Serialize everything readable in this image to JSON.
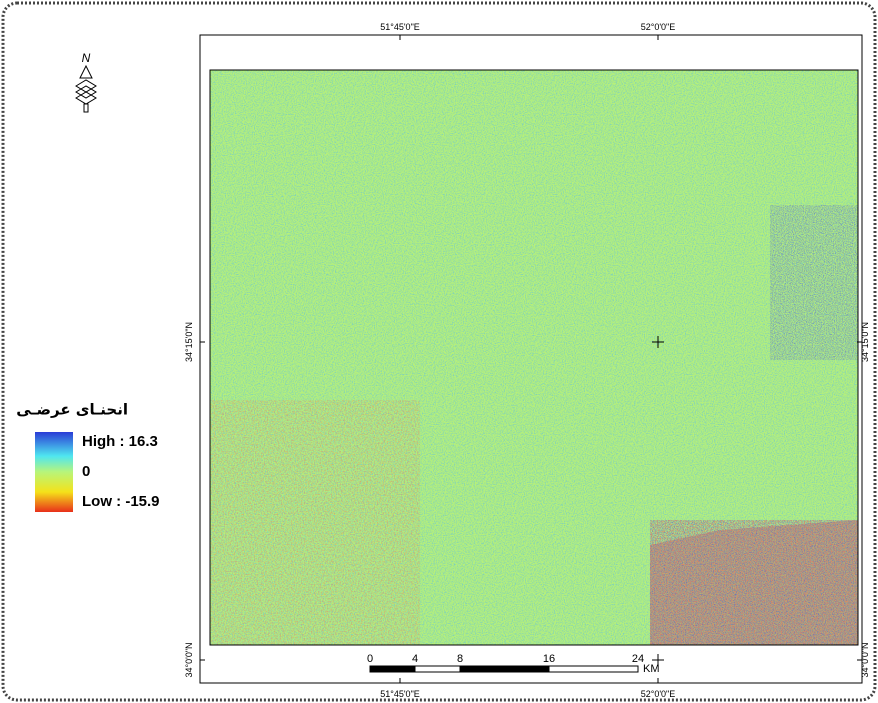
{
  "north_arrow": "N",
  "legend": {
    "title": "انحنـای عرضـی",
    "high": "High : 16.3",
    "zero": "0",
    "low": "Low : -15.9"
  },
  "graticule": {
    "top": [
      "51°45'0\"E",
      "52°0'0\"E"
    ],
    "bottom": [
      "51°45'0\"E",
      "52°0'0\"E"
    ],
    "left": [
      "34°15'0\"N",
      "34°0'0\"N"
    ],
    "right": [
      "34°15'0\"N",
      "34°0'0\"N"
    ]
  },
  "scale_bar": {
    "labels": [
      "0",
      "4",
      "8",
      "16",
      "24"
    ],
    "unit": "KM"
  }
}
